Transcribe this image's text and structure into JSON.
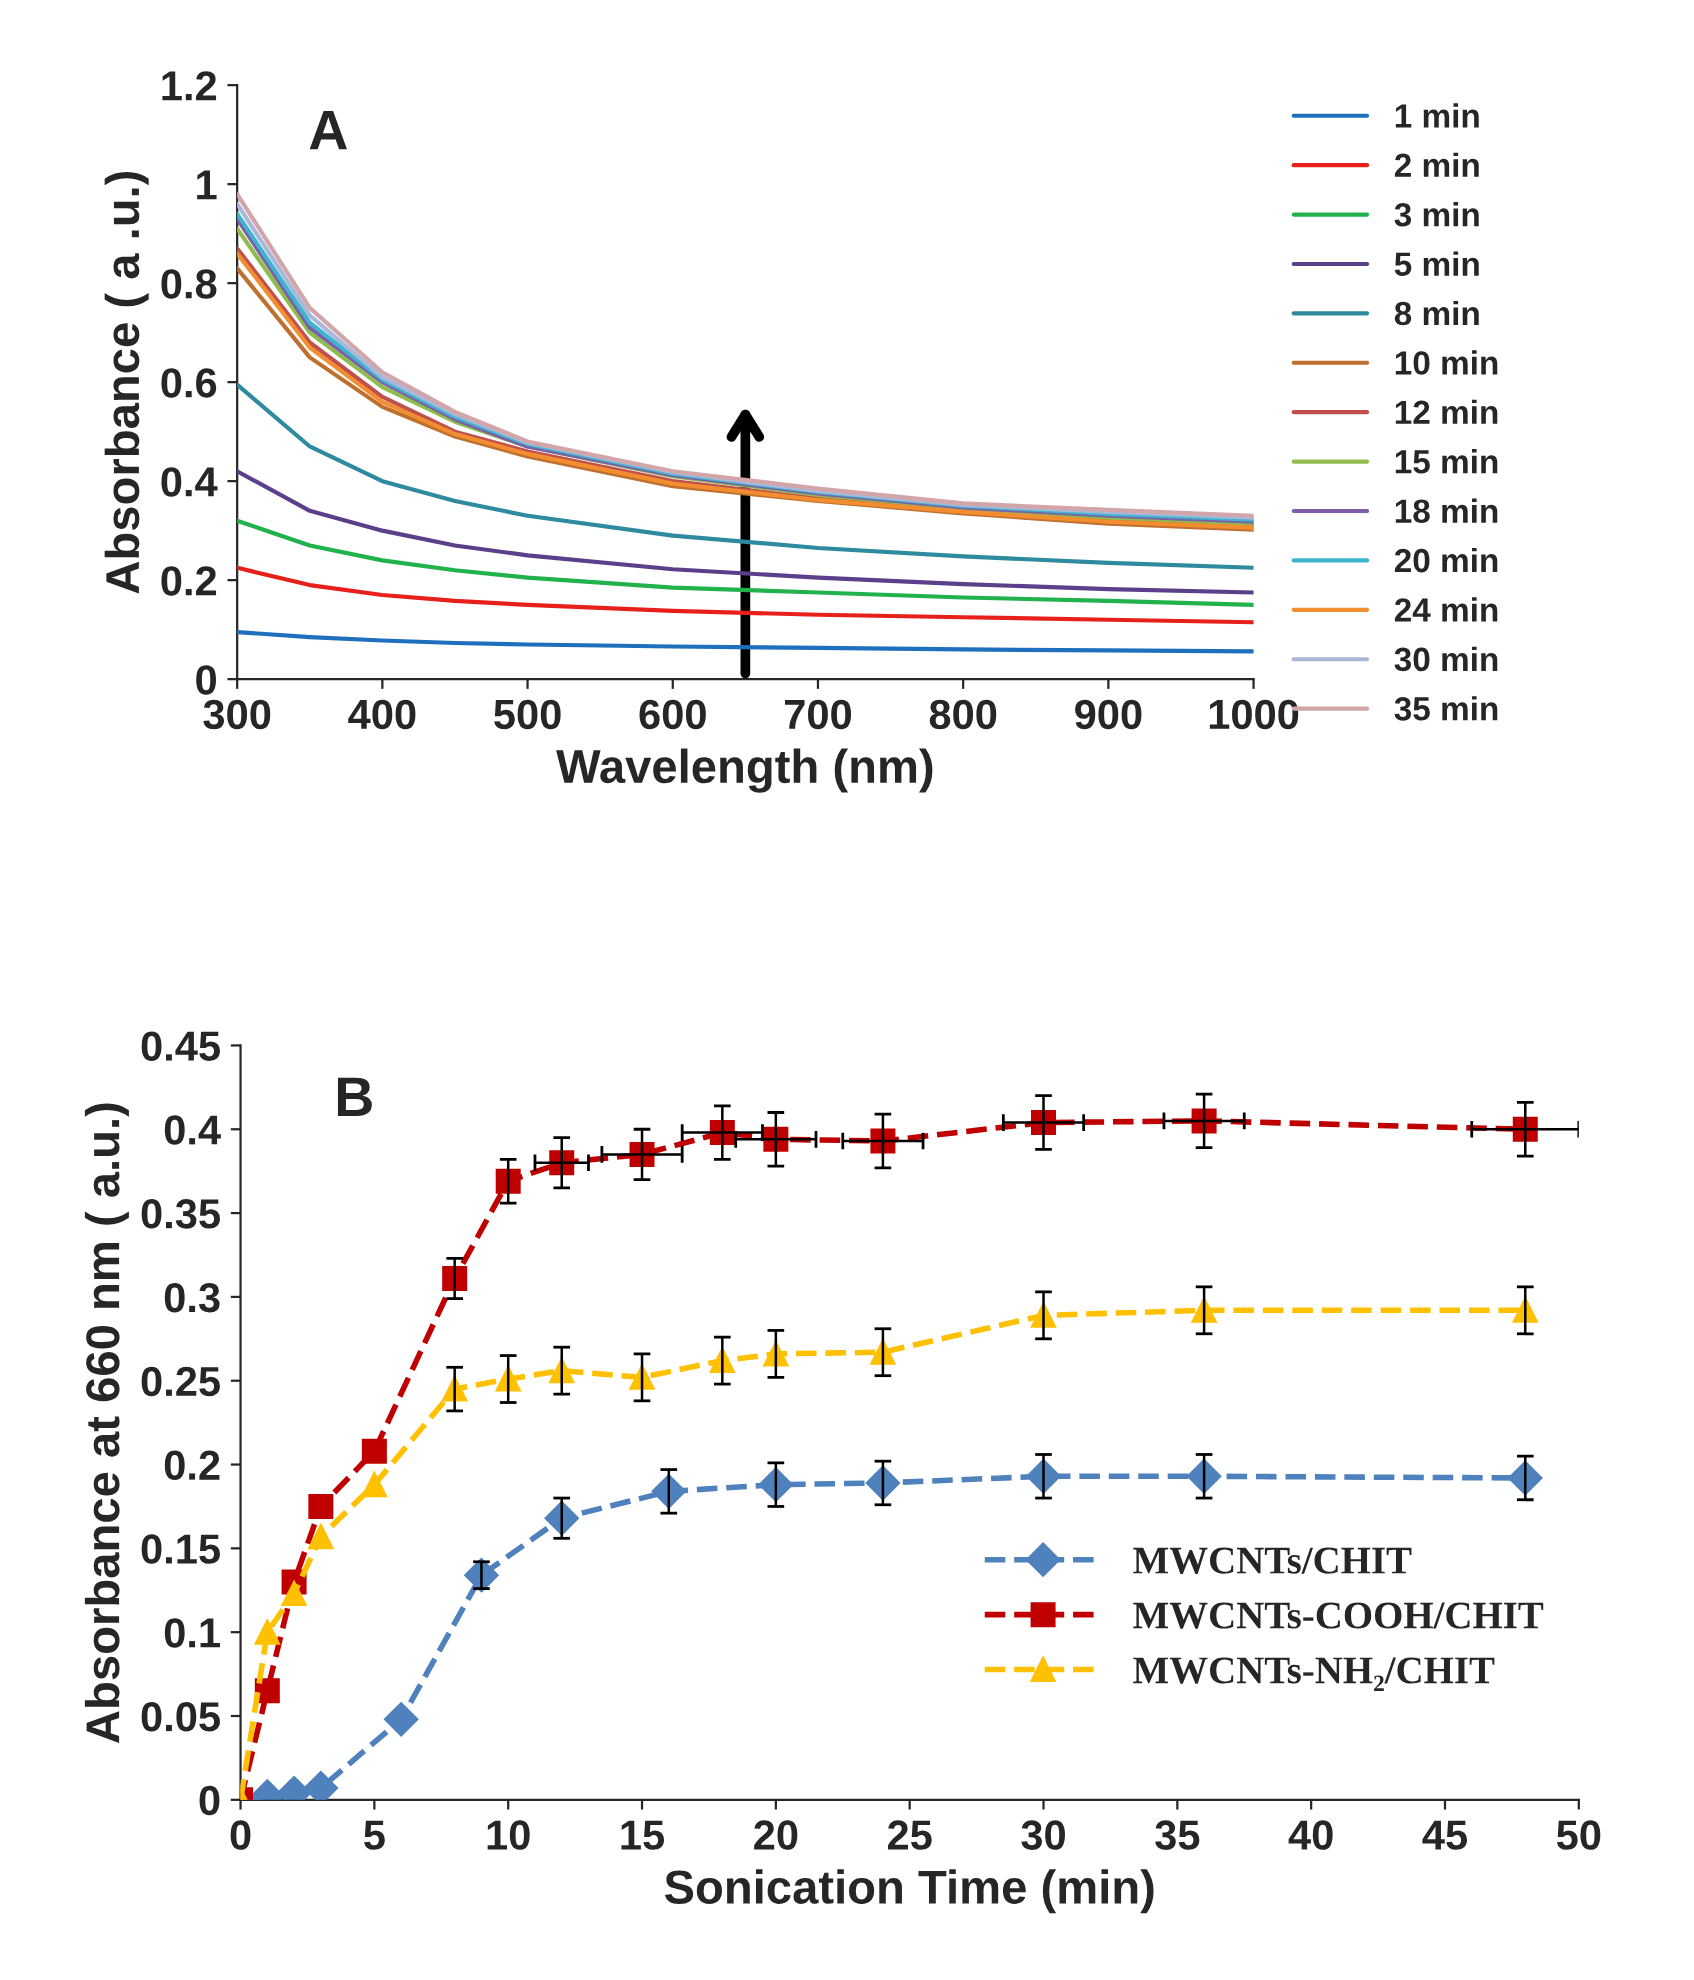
{
  "chart_data": [
    {
      "type": "line",
      "xlabel": "Wavelength (nm)",
      "ylabel": "Absorbance ( a .u.)",
      "annotations": [
        "A"
      ],
      "x": [
        300,
        350,
        400,
        450,
        500,
        600,
        700,
        800,
        900,
        1000
      ],
      "xlim": [
        300,
        1000
      ],
      "xticks": [
        300,
        400,
        500,
        600,
        700,
        800,
        900,
        1000
      ],
      "ylim": [
        0,
        1.2
      ],
      "yticks": [
        0,
        0.2,
        0.4,
        0.6,
        0.8,
        1,
        1.2
      ],
      "legend": "right",
      "grid": false,
      "marker": "none",
      "line_style": "solid",
      "series": [
        {
          "name": "1 min",
          "color": "#1f6fbf",
          "values": [
            0.095,
            0.085,
            0.078,
            0.073,
            0.07,
            0.066,
            0.063,
            0.06,
            0.058,
            0.056
          ]
        },
        {
          "name": "2 min",
          "color": "#e8201c",
          "values": [
            0.225,
            0.19,
            0.17,
            0.158,
            0.15,
            0.138,
            0.13,
            0.125,
            0.12,
            0.115
          ]
        },
        {
          "name": "3 min",
          "color": "#22b24c",
          "values": [
            0.32,
            0.27,
            0.24,
            0.22,
            0.205,
            0.185,
            0.175,
            0.165,
            0.158,
            0.15
          ]
        },
        {
          "name": "5 min",
          "color": "#5b3f8a",
          "values": [
            0.42,
            0.34,
            0.3,
            0.27,
            0.25,
            0.222,
            0.205,
            0.192,
            0.182,
            0.175
          ]
        },
        {
          "name": "8 min",
          "color": "#2e8a9e",
          "values": [
            0.595,
            0.47,
            0.4,
            0.36,
            0.33,
            0.29,
            0.265,
            0.248,
            0.235,
            0.225
          ]
        },
        {
          "name": "10 min",
          "color": "#c0702e",
          "values": [
            0.83,
            0.65,
            0.55,
            0.49,
            0.45,
            0.39,
            0.36,
            0.335,
            0.314,
            0.302
          ]
        },
        {
          "name": "12 min",
          "color": "#c0504d",
          "values": [
            0.87,
            0.68,
            0.57,
            0.5,
            0.46,
            0.4,
            0.365,
            0.34,
            0.322,
            0.31
          ]
        },
        {
          "name": "15 min",
          "color": "#8fbc4a",
          "values": [
            0.91,
            0.7,
            0.59,
            0.52,
            0.47,
            0.41,
            0.372,
            0.345,
            0.326,
            0.314
          ]
        },
        {
          "name": "18 min",
          "color": "#7d5ea8",
          "values": [
            0.93,
            0.71,
            0.6,
            0.525,
            0.47,
            0.412,
            0.375,
            0.347,
            0.33,
            0.318
          ]
        },
        {
          "name": "20 min",
          "color": "#3fb4cf",
          "values": [
            0.94,
            0.72,
            0.605,
            0.53,
            0.475,
            0.415,
            0.378,
            0.35,
            0.334,
            0.322
          ]
        },
        {
          "name": "24 min",
          "color": "#f28d30",
          "values": [
            0.86,
            0.67,
            0.56,
            0.495,
            0.455,
            0.395,
            0.362,
            0.338,
            0.318,
            0.306
          ]
        },
        {
          "name": "30 min",
          "color": "#a9b8d8",
          "values": [
            0.96,
            0.735,
            0.61,
            0.535,
            0.478,
            0.418,
            0.38,
            0.352,
            0.338,
            0.326
          ]
        },
        {
          "name": "35 min",
          "color": "#d2a6a8",
          "values": [
            0.98,
            0.75,
            0.62,
            0.54,
            0.48,
            0.42,
            0.385,
            0.355,
            0.342,
            0.33
          ]
        }
      ]
    },
    {
      "type": "line",
      "xlabel": "Sonication Time (min)",
      "ylabel": "Absorbance at 660 nm ( a.u.)",
      "annotations": [
        "B"
      ],
      "xlim": [
        0,
        50
      ],
      "xticks": [
        0,
        5,
        10,
        15,
        20,
        25,
        30,
        35,
        40,
        45,
        50
      ],
      "ylim": [
        0,
        0.45
      ],
      "yticks": [
        0,
        0.05,
        0.1,
        0.15,
        0.2,
        0.25,
        0.3,
        0.35,
        0.4,
        0.45
      ],
      "legend": "right",
      "grid": false,
      "line_style": "dashed",
      "series": [
        {
          "name": "MWCNTs/CHIT",
          "color": "#4f81bd",
          "marker": "diamond",
          "x": [
            0,
            1,
            2,
            3,
            6,
            9,
            12,
            16,
            20,
            24,
            30,
            36,
            48
          ],
          "values": [
            0,
            0.002,
            0.004,
            0.007,
            0.048,
            0.134,
            0.168,
            0.184,
            0.188,
            0.189,
            0.193,
            0.193,
            0.192
          ],
          "errors": [
            null,
            null,
            null,
            null,
            null,
            0.008,
            0.012,
            0.013,
            0.013,
            0.013,
            0.013,
            0.013,
            0.013
          ]
        },
        {
          "name": "MWCNTs-COOH/CHIT",
          "color": "#c00000",
          "marker": "square",
          "x": [
            0,
            1,
            2,
            3,
            5,
            8,
            10,
            12,
            15,
            18,
            20,
            24,
            30,
            36,
            48
          ],
          "values": [
            0,
            0.065,
            0.13,
            0.175,
            0.208,
            0.311,
            0.369,
            0.38,
            0.385,
            0.398,
            0.394,
            0.393,
            0.404,
            0.405,
            0.4
          ],
          "errors": [
            null,
            null,
            null,
            null,
            null,
            0.012,
            0.013,
            0.015,
            0.015,
            0.016,
            0.016,
            0.016,
            0.016,
            0.016,
            0.016
          ],
          "xerrors": [
            null,
            null,
            null,
            null,
            null,
            null,
            null,
            1,
            1.5,
            1.5,
            1.5,
            1.5,
            1.5,
            1.5,
            2
          ]
        },
        {
          "name": "MWCNTs-NH₂/CHIT",
          "color": "#ffc000",
          "marker": "triangle",
          "x": [
            0,
            1,
            2,
            3,
            5,
            8,
            10,
            12,
            15,
            18,
            20,
            24,
            30,
            36,
            48
          ],
          "values": [
            0,
            0.1,
            0.123,
            0.157,
            0.188,
            0.245,
            0.251,
            0.256,
            0.252,
            0.262,
            0.266,
            0.267,
            0.289,
            0.292,
            0.292
          ],
          "errors": [
            null,
            null,
            null,
            null,
            null,
            0.013,
            0.014,
            0.014,
            0.014,
            0.014,
            0.014,
            0.014,
            0.014,
            0.014,
            0.014
          ]
        }
      ]
    }
  ]
}
